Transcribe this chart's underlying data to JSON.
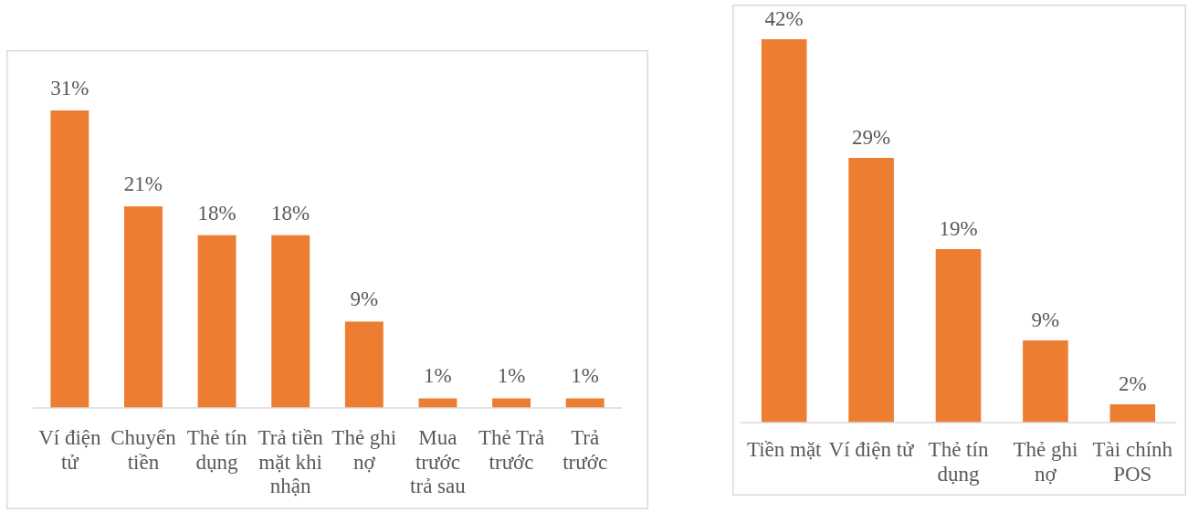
{
  "chart_data": [
    {
      "type": "bar",
      "categories": [
        "Ví điện tử",
        "Chuyển tiền",
        "Thẻ tín dụng",
        "Trả tiền mặt khi nhận",
        "Thẻ ghi nợ",
        "Mua trước trả sau",
        "Thẻ Trả trước",
        "Trả trước"
      ],
      "values": [
        31,
        21,
        18,
        18,
        9,
        1,
        1,
        1
      ],
      "value_labels": [
        "31%",
        "21%",
        "18%",
        "18%",
        "9%",
        "1%",
        "1%",
        "1%"
      ],
      "color": "#ed7d31"
    },
    {
      "type": "bar",
      "categories": [
        "Tiền mặt",
        "Ví điện tử",
        "Thẻ tín dụng",
        "Thẻ ghi nợ",
        "Tài chính POS"
      ],
      "values": [
        42,
        29,
        19,
        9,
        2
      ],
      "value_labels": [
        "42%",
        "29%",
        "19%",
        "9%",
        "2%"
      ],
      "color": "#ed7d31"
    }
  ]
}
